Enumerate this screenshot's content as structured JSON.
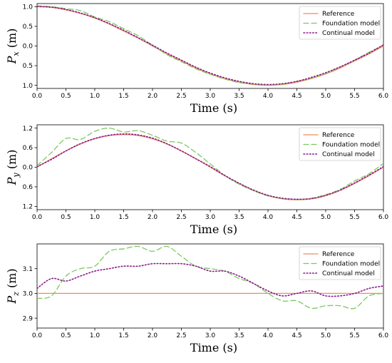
{
  "chart_data": [
    {
      "type": "line",
      "xlabel": "Time (s)",
      "ylabel_main": "P",
      "ylabel_sub": "x",
      "ylabel_unit": "(m)",
      "xlim": [
        0,
        6
      ],
      "ylim": [
        -1.08,
        1.08
      ],
      "xticks": [
        0.0,
        0.5,
        1.0,
        1.5,
        2.0,
        2.5,
        3.0,
        3.5,
        4.0,
        4.5,
        5.0,
        5.5,
        6.0
      ],
      "xtick_labels": [
        "0.0",
        "0.5",
        "1.0",
        "1.5",
        "2.0",
        "2.5",
        "3.0",
        "3.5",
        "4.0",
        "4.5",
        "5.0",
        "5.5",
        "6.0"
      ],
      "yticks": [
        1.0,
        0.5,
        0.0,
        -0.5,
        -1.0
      ],
      "ytick_labels": [
        "1.0",
        "0.5",
        "0.0",
        "0.5",
        "1.0"
      ],
      "legend_position": "top-right",
      "series": [
        {
          "name": "Reference",
          "style": "solid",
          "color": "#f08a5d",
          "x": [
            0,
            0.25,
            0.5,
            0.75,
            1.0,
            1.25,
            1.5,
            1.75,
            2.0,
            2.25,
            2.5,
            2.75,
            3.0,
            3.25,
            3.5,
            3.75,
            4.0,
            4.25,
            4.5,
            4.75,
            5.0,
            5.25,
            5.5,
            5.75,
            6.0
          ],
          "y": [
            1.0,
            0.98,
            0.92,
            0.83,
            0.71,
            0.56,
            0.38,
            0.2,
            0.0,
            -0.2,
            -0.38,
            -0.56,
            -0.71,
            -0.83,
            -0.92,
            -0.98,
            -1.0,
            -0.98,
            -0.92,
            -0.83,
            -0.71,
            -0.56,
            -0.38,
            -0.2,
            0.0
          ]
        },
        {
          "name": "Foundation model",
          "style": "dashed",
          "color": "#7dc95e",
          "x": [
            0,
            0.25,
            0.5,
            0.75,
            1.0,
            1.25,
            1.5,
            1.75,
            2.0,
            2.25,
            2.5,
            2.75,
            3.0,
            3.25,
            3.5,
            3.75,
            4.0,
            4.25,
            4.5,
            4.75,
            5.0,
            5.25,
            5.5,
            5.75,
            6.0
          ],
          "y": [
            1.02,
            1.0,
            0.95,
            0.9,
            0.74,
            0.62,
            0.44,
            0.26,
            0.02,
            -0.22,
            -0.4,
            -0.58,
            -0.72,
            -0.84,
            -0.93,
            -0.97,
            -1.0,
            -0.97,
            -0.9,
            -0.82,
            -0.7,
            -0.54,
            -0.36,
            -0.16,
            0.02
          ]
        },
        {
          "name": "Continual model",
          "style": "dotted",
          "color": "#8b1a8b",
          "x": [
            0,
            0.25,
            0.5,
            0.75,
            1.0,
            1.25,
            1.5,
            1.75,
            2.0,
            2.25,
            2.5,
            2.75,
            3.0,
            3.25,
            3.5,
            3.75,
            4.0,
            4.25,
            4.5,
            4.75,
            5.0,
            5.25,
            5.5,
            5.75,
            6.0
          ],
          "y": [
            1.01,
            0.99,
            0.93,
            0.84,
            0.72,
            0.57,
            0.4,
            0.21,
            0.02,
            -0.18,
            -0.36,
            -0.54,
            -0.69,
            -0.81,
            -0.9,
            -0.96,
            -0.98,
            -0.96,
            -0.9,
            -0.8,
            -0.68,
            -0.53,
            -0.36,
            -0.18,
            0.03
          ]
        }
      ]
    },
    {
      "type": "line",
      "xlabel": "Time (s)",
      "ylabel_main": "P",
      "ylabel_sub": "y",
      "ylabel_unit": "(m)",
      "xlim": [
        0,
        6
      ],
      "ylim": [
        -1.3,
        1.3
      ],
      "xticks": [
        0.0,
        0.5,
        1.0,
        1.5,
        2.0,
        2.5,
        3.0,
        3.5,
        4.0,
        4.5,
        5.0,
        5.5,
        6.0
      ],
      "xtick_labels": [
        "0.0",
        "0.5",
        "1.0",
        "1.5",
        "2.0",
        "2.5",
        "3.0",
        "3.5",
        "4.0",
        "4.5",
        "5.0",
        "5.5",
        "6.0"
      ],
      "yticks": [
        1.2,
        0.6,
        0.0,
        -0.6,
        -1.2
      ],
      "ytick_labels": [
        "1.2",
        "0.6",
        "0.0",
        "0.6",
        "1.2"
      ],
      "legend_position": "top-right",
      "series": [
        {
          "name": "Reference",
          "style": "solid",
          "color": "#f08a5d",
          "x": [
            0,
            0.25,
            0.5,
            0.75,
            1.0,
            1.25,
            1.5,
            1.75,
            2.0,
            2.25,
            2.5,
            2.75,
            3.0,
            3.25,
            3.5,
            3.75,
            4.0,
            4.25,
            4.5,
            4.75,
            5.0,
            5.25,
            5.5,
            5.75,
            6.0
          ],
          "y": [
            0.0,
            0.26,
            0.5,
            0.71,
            0.87,
            0.97,
            1.0,
            0.97,
            0.87,
            0.71,
            0.5,
            0.26,
            0.0,
            -0.26,
            -0.5,
            -0.71,
            -0.87,
            -0.97,
            -1.0,
            -0.97,
            -0.87,
            -0.71,
            -0.5,
            -0.26,
            0.0
          ]
        },
        {
          "name": "Foundation model",
          "style": "dashed",
          "color": "#7dc95e",
          "x": [
            0,
            0.25,
            0.5,
            0.75,
            1.0,
            1.25,
            1.5,
            1.75,
            2.0,
            2.25,
            2.5,
            2.75,
            3.0,
            3.25,
            3.5,
            3.75,
            4.0,
            4.25,
            4.5,
            4.75,
            5.0,
            5.25,
            5.5,
            5.75,
            6.0
          ],
          "y": [
            0.05,
            0.45,
            0.88,
            0.85,
            1.1,
            1.2,
            1.08,
            1.12,
            0.98,
            0.8,
            0.74,
            0.45,
            0.1,
            -0.25,
            -0.52,
            -0.72,
            -0.88,
            -0.96,
            -0.99,
            -0.95,
            -0.84,
            -0.68,
            -0.42,
            -0.2,
            0.12
          ]
        },
        {
          "name": "Continual model",
          "style": "dotted",
          "color": "#8b1a8b",
          "x": [
            0,
            0.25,
            0.5,
            0.75,
            1.0,
            1.25,
            1.5,
            1.75,
            2.0,
            2.25,
            2.5,
            2.75,
            3.0,
            3.25,
            3.5,
            3.75,
            4.0,
            4.25,
            4.5,
            4.75,
            5.0,
            5.25,
            5.5,
            5.75,
            6.0
          ],
          "y": [
            0.02,
            0.24,
            0.5,
            0.72,
            0.88,
            0.98,
            1.02,
            0.99,
            0.89,
            0.72,
            0.5,
            0.26,
            0.02,
            -0.25,
            -0.49,
            -0.7,
            -0.86,
            -0.95,
            -0.98,
            -0.96,
            -0.86,
            -0.7,
            -0.48,
            -0.24,
            0.02
          ]
        }
      ]
    },
    {
      "type": "line",
      "xlabel": "Time (s)",
      "ylabel_main": "P",
      "ylabel_sub": "z",
      "ylabel_unit": "(m)",
      "xlim": [
        0,
        6
      ],
      "ylim": [
        2.86,
        3.2
      ],
      "xticks": [
        0.0,
        0.5,
        1.0,
        1.5,
        2.0,
        2.5,
        3.0,
        3.5,
        4.0,
        4.5,
        5.0,
        5.5,
        6.0
      ],
      "xtick_labels": [
        "0.0",
        "0.5",
        "1.0",
        "1.5",
        "2.0",
        "2.5",
        "3.0",
        "3.5",
        "4.0",
        "4.5",
        "5.0",
        "5.5",
        "6.0"
      ],
      "yticks": [
        3.1,
        3.0,
        2.9
      ],
      "ytick_labels": [
        "3.1",
        "3.0",
        "2.9"
      ],
      "legend_position": "top-right",
      "series": [
        {
          "name": "Reference",
          "style": "solid",
          "color": "#f08a5d",
          "x": [
            0,
            6
          ],
          "y": [
            3.0,
            3.0
          ]
        },
        {
          "name": "Foundation model",
          "style": "dashed",
          "color": "#7dc95e",
          "x": [
            0,
            0.25,
            0.5,
            0.75,
            1.0,
            1.25,
            1.5,
            1.75,
            2.0,
            2.25,
            2.5,
            2.75,
            3.0,
            3.25,
            3.5,
            3.75,
            4.0,
            4.25,
            4.5,
            4.75,
            5.0,
            5.25,
            5.5,
            5.75,
            6.0
          ],
          "y": [
            2.98,
            2.99,
            3.07,
            3.1,
            3.11,
            3.17,
            3.18,
            3.19,
            3.17,
            3.19,
            3.15,
            3.11,
            3.1,
            3.09,
            3.06,
            3.04,
            3.0,
            2.97,
            2.97,
            2.94,
            2.95,
            2.95,
            2.94,
            2.99,
            3.0
          ]
        },
        {
          "name": "Continual model",
          "style": "dotted",
          "color": "#8b1a8b",
          "x": [
            0,
            0.25,
            0.5,
            0.75,
            1.0,
            1.25,
            1.5,
            1.75,
            2.0,
            2.25,
            2.5,
            2.75,
            3.0,
            3.25,
            3.5,
            3.75,
            4.0,
            4.25,
            4.5,
            4.75,
            5.0,
            5.25,
            5.5,
            5.75,
            6.0
          ],
          "y": [
            3.02,
            3.06,
            3.05,
            3.07,
            3.09,
            3.1,
            3.11,
            3.11,
            3.12,
            3.12,
            3.12,
            3.11,
            3.09,
            3.09,
            3.07,
            3.04,
            3.01,
            2.99,
            3.0,
            3.01,
            2.99,
            2.99,
            3.0,
            3.02,
            3.03
          ]
        }
      ]
    }
  ]
}
